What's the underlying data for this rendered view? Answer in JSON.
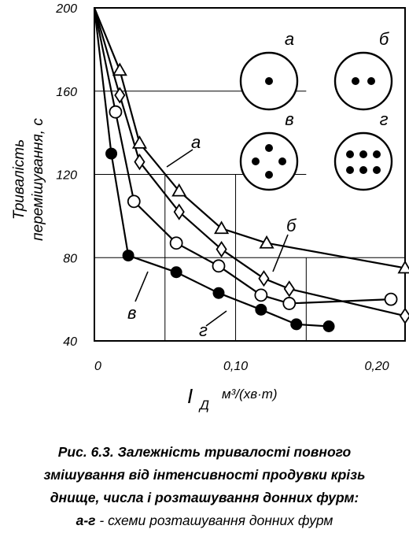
{
  "chart_data": {
    "type": "line",
    "x_axis": {
      "label_symbol": "I",
      "label_subscript": "Д",
      "label_unit": "м³/(хв·т)",
      "range": [
        0,
        0.22
      ],
      "ticks": [
        {
          "value": 0,
          "label": "0"
        },
        {
          "value": 0.1,
          "label": "0,10"
        },
        {
          "value": 0.2,
          "label": "0,20"
        }
      ]
    },
    "y_axis": {
      "label_line1": "Тривалість",
      "label_line2": "перемішування, с",
      "range": [
        40,
        200
      ],
      "ticks": [
        {
          "value": 200,
          "label": "200"
        },
        {
          "value": 160,
          "label": "160"
        },
        {
          "value": 120,
          "label": "120"
        },
        {
          "value": 80,
          "label": "80"
        },
        {
          "value": 40,
          "label": "40"
        }
      ]
    },
    "grid": true,
    "series": [
      {
        "name": "а",
        "marker": "triangle",
        "x": [
          0,
          0.018,
          0.032,
          0.06,
          0.09,
          0.122,
          0.22
        ],
        "y": [
          200,
          170,
          135,
          112,
          94,
          87,
          75
        ]
      },
      {
        "name": "б",
        "marker": "diamond",
        "x": [
          0,
          0.018,
          0.032,
          0.06,
          0.09,
          0.12,
          0.138,
          0.22
        ],
        "y": [
          200,
          158,
          126,
          102,
          84,
          70,
          65,
          52
        ]
      },
      {
        "name": "в",
        "marker": "circle-open",
        "x": [
          0,
          0.015,
          0.028,
          0.058,
          0.088,
          0.118,
          0.138,
          0.21
        ],
        "y": [
          200,
          150,
          107,
          87,
          76,
          62,
          58,
          60
        ]
      },
      {
        "name": "г",
        "marker": "circle-filled",
        "x": [
          0,
          0.012,
          0.024,
          0.058,
          0.088,
          0.118,
          0.143,
          0.166
        ],
        "y": [
          200,
          130,
          81,
          73,
          63,
          55,
          48,
          47
        ]
      }
    ]
  },
  "schemes": [
    {
      "label": "а",
      "dots": 1
    },
    {
      "label": "б",
      "dots": 2
    },
    {
      "label": "в",
      "dots": 4
    },
    {
      "label": "г",
      "dots": 6
    }
  ],
  "curve_labels": {
    "a": "а",
    "b": "б",
    "v": "в",
    "g": "г"
  },
  "caption": {
    "line1_bold": "Рис. 6.3. Залежність тривалості повного",
    "line2_bold": "змішування від інтенсивності продувки крізь",
    "line3_bold": "днище, числа і розташування донних фурм:",
    "line4_bold": "а-г",
    "line4_rest": " - схеми розташування донних фурм"
  }
}
